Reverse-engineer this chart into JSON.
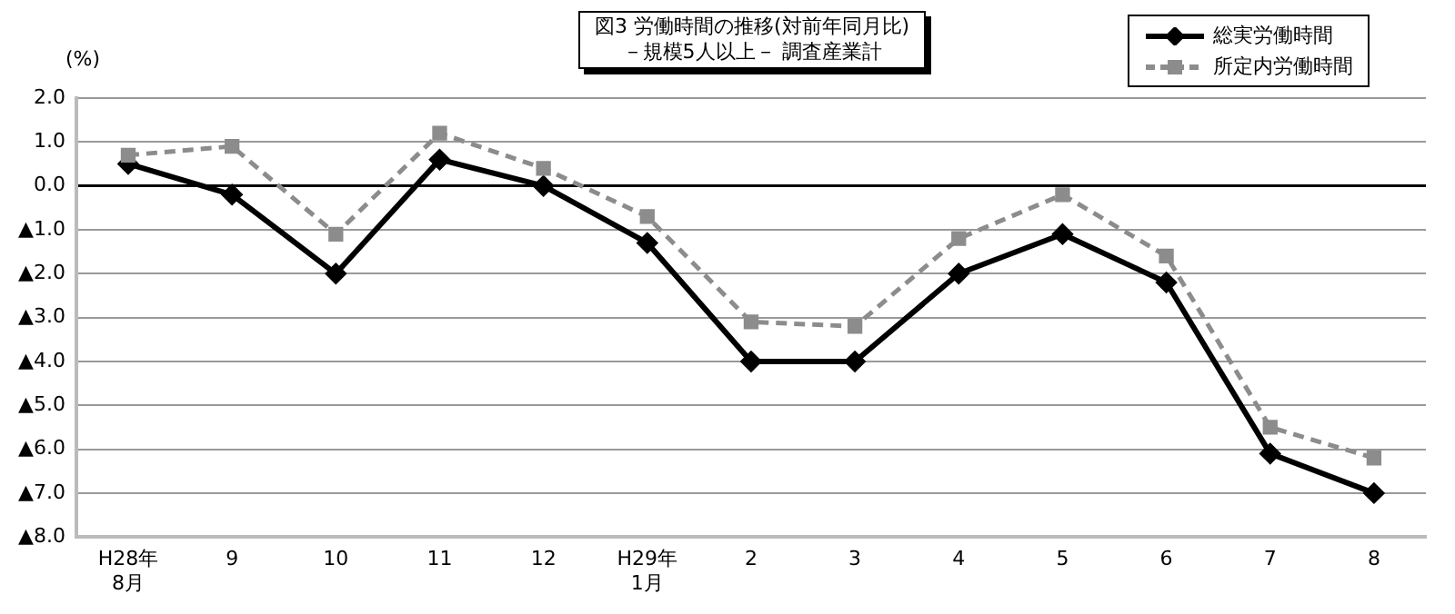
{
  "chart_data": {
    "type": "line",
    "title": "図3 労働時間の推移(対前年同月比)",
    "subtitle": "－規模5人以上－ 調査産業計",
    "ylabel": "(%)",
    "categories": [
      "H28年\n8月",
      "9",
      "10",
      "11",
      "12",
      "H29年\n1月",
      "2",
      "3",
      "4",
      "5",
      "6",
      "7",
      "8"
    ],
    "series": [
      {
        "name": "総実労働時間",
        "color": "#000000",
        "marker": "diamond",
        "line_style": "solid",
        "values": [
          0.5,
          -0.2,
          -2.0,
          0.6,
          0.0,
          -1.3,
          -4.0,
          -4.0,
          -2.0,
          -1.1,
          -2.2,
          -6.1,
          -7.0
        ]
      },
      {
        "name": "所定内労働時間",
        "color": "#8c8c8c",
        "marker": "square",
        "line_style": "dashed",
        "values": [
          0.7,
          0.9,
          -1.1,
          1.2,
          0.4,
          -0.7,
          -3.1,
          -3.2,
          -1.2,
          -0.2,
          -1.6,
          -5.5,
          -6.2
        ]
      }
    ],
    "ylim": [
      -8,
      2
    ],
    "yticks": [
      {
        "value": 2,
        "label": "2.0"
      },
      {
        "value": 1,
        "label": "1.0"
      },
      {
        "value": 0,
        "label": "0.0"
      },
      {
        "value": -1,
        "label": "▲1.0"
      },
      {
        "value": -2,
        "label": "▲2.0"
      },
      {
        "value": -3,
        "label": "▲3.0"
      },
      {
        "value": -4,
        "label": "▲4.0"
      },
      {
        "value": -5,
        "label": "▲5.0"
      },
      {
        "value": -6,
        "label": "▲6.0"
      },
      {
        "value": -7,
        "label": "▲7.0"
      },
      {
        "value": -8,
        "label": "▲8.0"
      }
    ],
    "grid": "y",
    "legend": "top right"
  }
}
